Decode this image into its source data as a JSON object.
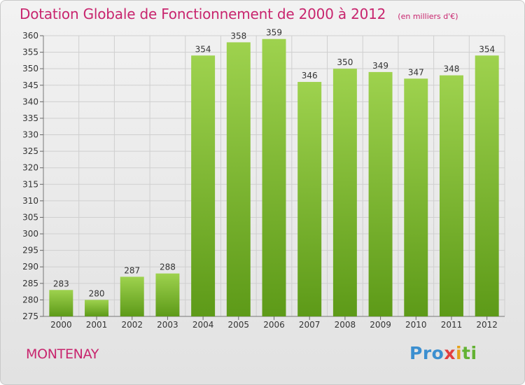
{
  "header": {
    "title": "Dotation Globale de Fonctionnement de 2000 à 2012",
    "subtitle": "(en milliers d'€)"
  },
  "footer": {
    "commune": "MONTENAY",
    "logo_parts": [
      "Pro",
      "x",
      "i",
      "ti"
    ]
  },
  "colors": {
    "title": "#c8256e",
    "bar_light": "#9ed24e",
    "bar_dark": "#5d9a18",
    "grid": "#cfcfcf"
  },
  "chart_data": {
    "type": "bar",
    "title": "Dotation Globale de Fonctionnement de 2000 à 2012",
    "subtitle": "(en milliers d'€)",
    "xlabel": "",
    "ylabel": "",
    "categories": [
      "2000",
      "2001",
      "2002",
      "2003",
      "2004",
      "2005",
      "2006",
      "2007",
      "2008",
      "2009",
      "2010",
      "2011",
      "2012"
    ],
    "values": [
      283,
      280,
      287,
      288,
      354,
      358,
      359,
      346,
      350,
      349,
      347,
      348,
      354
    ],
    "ylim": [
      275,
      360
    ],
    "ytick_step": 5,
    "grid": true,
    "data_labels": true
  }
}
